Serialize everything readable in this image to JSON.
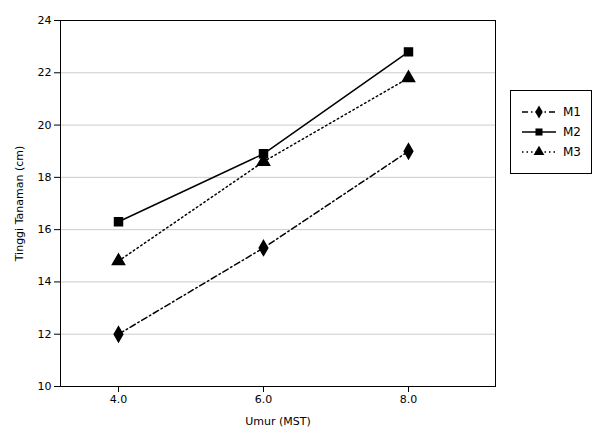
{
  "chart_data": {
    "type": "line",
    "xlabel": "Umur (MST)",
    "ylabel": "Tinggi Tanaman (cm)",
    "x": [
      4,
      6,
      8
    ],
    "series": [
      {
        "name": "M1",
        "color": "#000000",
        "values": [
          12.0,
          15.3,
          19.0
        ],
        "marker": "diamond",
        "line_style": "dashdot"
      },
      {
        "name": "M2",
        "color": "#000000",
        "values": [
          16.3,
          18.9,
          22.8
        ],
        "marker": "square",
        "line_style": "solid"
      },
      {
        "name": "M3",
        "color": "#000000",
        "values": [
          14.8,
          18.6,
          21.8
        ],
        "marker": "triangle",
        "line_style": "dotted"
      }
    ],
    "xlim": [
      3.2,
      9.2
    ],
    "xticks": [
      4,
      6,
      8
    ],
    "ylim": [
      10,
      24
    ],
    "yticks": [
      10,
      12,
      14,
      16,
      18,
      20,
      22,
      24
    ],
    "grid": true,
    "legend": "right"
  }
}
